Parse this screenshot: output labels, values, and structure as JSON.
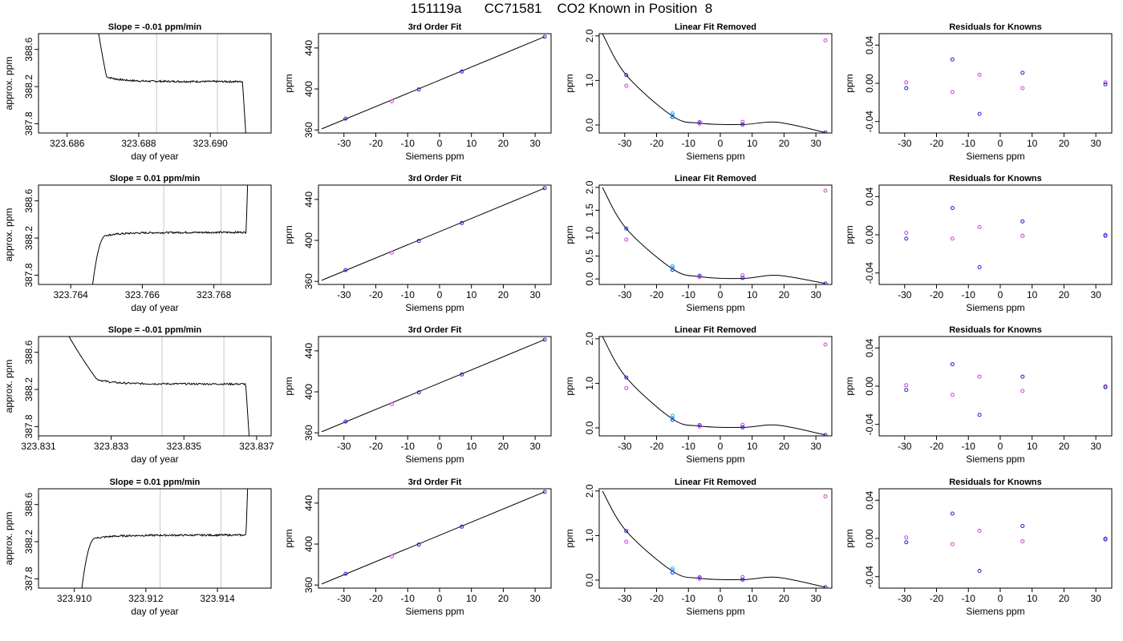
{
  "page": {
    "title": "151119a      CC71581    CO2 Known in Position  8"
  },
  "colors": {
    "axis": "#000000",
    "trace": "#000000",
    "vline": "#c8c8c8",
    "blue": "#1f1fd6",
    "magenta": "#d13fd1",
    "cyan": "#30b0e0"
  },
  "chart_data": [
    {
      "type": "line",
      "title": "Slope =  -0.01  ppm/min",
      "xlabel": "day of year",
      "ylabel": "approx. ppm",
      "xlim": [
        323.6852,
        323.6917
      ],
      "ylim": [
        387.7,
        388.77
      ],
      "xticks": [
        323.686,
        323.688,
        323.69
      ],
      "xtick_labels": [
        "323.686",
        "323.688",
        "323.690"
      ],
      "yticks": [
        387.8,
        388.2,
        388.6
      ],
      "ytick_labels": [
        "387.8",
        "388.2",
        "388.6"
      ],
      "vlines": [
        323.6885,
        323.6902
      ],
      "trace": {
        "shape": "decay",
        "x_start": 323.6867,
        "x_end": 323.6911,
        "t1": 323.6871,
        "x_drop": 323.6909,
        "level": 388.255,
        "noise": 0.012,
        "slope": -0.003
      }
    },
    {
      "type": "line",
      "title": "Slope =  0.01  ppm/min",
      "xlabel": "day of year",
      "ylabel": "approx. ppm",
      "xlim": [
        323.7631,
        323.7696
      ],
      "ylim": [
        387.7,
        388.77
      ],
      "xticks": [
        323.764,
        323.766,
        323.768
      ],
      "xtick_labels": [
        "323.764",
        "323.766",
        "323.768"
      ],
      "yticks": [
        387.8,
        388.2,
        388.6
      ],
      "ytick_labels": [
        "387.8",
        "388.2",
        "388.6"
      ],
      "vlines": [
        323.7666,
        323.7682
      ],
      "trace": {
        "shape": "rise",
        "x_start": 323.7645,
        "x_end": 323.769,
        "t1": 323.765,
        "x_drop": 323.7689,
        "level": 388.26,
        "noise": 0.012,
        "slope": 0.003
      }
    },
    {
      "type": "line",
      "title": "Slope =  -0.01  ppm/min",
      "xlabel": "day of year",
      "ylabel": "approx. ppm",
      "xlim": [
        323.831,
        323.8374
      ],
      "ylim": [
        387.7,
        388.77
      ],
      "xticks": [
        323.831,
        323.833,
        323.835,
        323.837
      ],
      "xtick_labels": [
        "323.831",
        "323.833",
        "323.835",
        "323.837"
      ],
      "yticks": [
        387.8,
        388.2,
        388.6
      ],
      "ytick_labels": [
        "387.8",
        "388.2",
        "388.6"
      ],
      "vlines": [
        323.8344,
        323.8361
      ],
      "trace": {
        "shape": "decay",
        "x_start": 323.8312,
        "x_end": 323.8369,
        "t1": 323.8326,
        "x_drop": 323.8367,
        "level": 388.26,
        "noise": 0.012,
        "slope": -0.003
      }
    },
    {
      "type": "line",
      "title": "Slope =  0.01  ppm/min",
      "xlabel": "day of year",
      "ylabel": "approx. ppm",
      "xlim": [
        323.909,
        323.9155
      ],
      "ylim": [
        387.7,
        388.77
      ],
      "xticks": [
        323.91,
        323.912,
        323.914
      ],
      "xtick_labels": [
        "323.910",
        "323.912",
        "323.914"
      ],
      "yticks": [
        387.8,
        388.2,
        388.6
      ],
      "ytick_labels": [
        "387.8",
        "388.2",
        "388.6"
      ],
      "vlines": [
        323.9124,
        323.9141
      ],
      "trace": {
        "shape": "rise",
        "x_start": 323.9101,
        "x_end": 323.9149,
        "t1": 323.9106,
        "x_drop": 323.9148,
        "level": 388.27,
        "noise": 0.012,
        "slope": 0.003
      }
    },
    {
      "type": "scatter",
      "title": "3rd Order Fit",
      "xlabel": "Siemens ppm",
      "ylabel": "ppm",
      "xlim": [
        -38,
        35
      ],
      "ylim": [
        357,
        454
      ],
      "xticks": [
        -30,
        -20,
        -10,
        0,
        10,
        20,
        30
      ],
      "xtick_labels": [
        "-30",
        "-20",
        "-10",
        "0",
        "10",
        "20",
        "30"
      ],
      "yticks": [
        360,
        400,
        440
      ],
      "ytick_labels": [
        "360",
        "400",
        "440"
      ],
      "fit_line": {
        "x": [
          -37,
          33
        ],
        "y": [
          361,
          451
        ]
      },
      "points": {
        "x": [
          -29.5,
          -15,
          -6.5,
          7,
          33
        ],
        "y": [
          371,
          388,
          399.5,
          417,
          451
        ],
        "colors": [
          "blue",
          "magenta",
          "blue",
          "blue",
          "blue"
        ]
      }
    },
    {
      "type": "scatter",
      "title": "3rd Order Fit",
      "xlabel": "Siemens ppm",
      "ylabel": "ppm",
      "xlim": [
        -38,
        35
      ],
      "ylim": [
        357,
        454
      ],
      "xticks": [
        -30,
        -20,
        -10,
        0,
        10,
        20,
        30
      ],
      "xtick_labels": [
        "-30",
        "-20",
        "-10",
        "0",
        "10",
        "20",
        "30"
      ],
      "yticks": [
        360,
        400,
        440
      ],
      "ytick_labels": [
        "360",
        "400",
        "440"
      ],
      "fit_line": {
        "x": [
          -37,
          33
        ],
        "y": [
          361,
          451
        ]
      },
      "points": {
        "x": [
          -29.5,
          -15,
          -6.5,
          7,
          33
        ],
        "y": [
          371,
          388,
          399.5,
          417,
          451
        ],
        "colors": [
          "blue",
          "magenta",
          "blue",
          "blue",
          "blue"
        ]
      }
    },
    {
      "type": "scatter",
      "title": "3rd Order Fit",
      "xlabel": "Siemens ppm",
      "ylabel": "ppm",
      "xlim": [
        -38,
        35
      ],
      "ylim": [
        357,
        454
      ],
      "xticks": [
        -30,
        -20,
        -10,
        0,
        10,
        20,
        30
      ],
      "xtick_labels": [
        "-30",
        "-20",
        "-10",
        "0",
        "10",
        "20",
        "30"
      ],
      "yticks": [
        360,
        400,
        440
      ],
      "ytick_labels": [
        "360",
        "400",
        "440"
      ],
      "fit_line": {
        "x": [
          -37,
          33
        ],
        "y": [
          361,
          451
        ]
      },
      "points": {
        "x": [
          -29.5,
          -15,
          -6.5,
          7,
          33
        ],
        "y": [
          371,
          388,
          399.5,
          417,
          451
        ],
        "colors": [
          "blue",
          "magenta",
          "blue",
          "blue",
          "blue"
        ]
      }
    },
    {
      "type": "scatter",
      "title": "3rd Order Fit",
      "xlabel": "Siemens ppm",
      "ylabel": "ppm",
      "xlim": [
        -38,
        35
      ],
      "ylim": [
        357,
        454
      ],
      "xticks": [
        -30,
        -20,
        -10,
        0,
        10,
        20,
        30
      ],
      "xtick_labels": [
        "-30",
        "-20",
        "-10",
        "0",
        "10",
        "20",
        "30"
      ],
      "yticks": [
        360,
        400,
        440
      ],
      "ytick_labels": [
        "360",
        "400",
        "440"
      ],
      "fit_line": {
        "x": [
          -37,
          33
        ],
        "y": [
          361,
          451
        ]
      },
      "points": {
        "x": [
          -29.5,
          -15,
          -6.5,
          7,
          33
        ],
        "y": [
          371,
          388,
          399.5,
          417,
          451
        ],
        "colors": [
          "blue",
          "magenta",
          "blue",
          "blue",
          "blue"
        ]
      }
    },
    {
      "type": "scatter",
      "title": "Linear Fit Removed",
      "xlabel": "Siemens ppm",
      "ylabel": "ppm",
      "xlim": [
        -38,
        35
      ],
      "ylim": [
        -0.18,
        2.05
      ],
      "xticks": [
        -30,
        -20,
        -10,
        0,
        10,
        20,
        30
      ],
      "xtick_labels": [
        "-30",
        "-20",
        "-10",
        "0",
        "10",
        "20",
        "30"
      ],
      "yticks": [
        0.0,
        1.0,
        2.0
      ],
      "ytick_labels": [
        "0.0",
        "1.0",
        "2.0"
      ],
      "curve": {
        "x": [
          -37,
          -29.5,
          -15,
          -6.5,
          7,
          18,
          33
        ],
        "y": [
          2.05,
          1.12,
          0.2,
          0.04,
          0.01,
          0.06,
          -0.17
        ]
      },
      "points": {
        "x": [
          -29.5,
          -29.5,
          -15,
          -15,
          -15,
          -6.5,
          -6.5,
          7,
          7,
          33,
          33
        ],
        "y": [
          1.12,
          0.88,
          0.26,
          0.18,
          0.22,
          0.06,
          0.03,
          0.07,
          0.01,
          1.9,
          -0.17
        ],
        "colors": [
          "blue",
          "magenta",
          "cyan",
          "blue",
          "cyan",
          "blue",
          "magenta",
          "magenta",
          "blue",
          "magenta",
          "blue"
        ]
      }
    },
    {
      "type": "scatter",
      "title": "Linear Fit Removed",
      "xlabel": "Siemens ppm",
      "ylabel": "ppm",
      "xlim": [
        -38,
        35
      ],
      "ylim": [
        -0.12,
        2.05
      ],
      "xticks": [
        -30,
        -20,
        -10,
        0,
        10,
        20,
        30
      ],
      "xtick_labels": [
        "-30",
        "-20",
        "-10",
        "0",
        "10",
        "20",
        "30"
      ],
      "yticks": [
        0.0,
        0.5,
        1.0,
        1.5,
        2.0
      ],
      "ytick_labels": [
        "0.0",
        "0.5",
        "1.0",
        "1.5",
        "2.0"
      ],
      "curve": {
        "x": [
          -37,
          -29.5,
          -15,
          -6.5,
          7,
          18,
          33
        ],
        "y": [
          2.0,
          1.1,
          0.22,
          0.05,
          0.01,
          0.08,
          -0.1
        ]
      },
      "points": {
        "x": [
          -29.5,
          -29.5,
          -15,
          -15,
          -15,
          -6.5,
          -6.5,
          7,
          7,
          33,
          33
        ],
        "y": [
          1.1,
          0.86,
          0.28,
          0.2,
          0.24,
          0.07,
          0.04,
          0.08,
          0.02,
          1.93,
          -0.1
        ],
        "colors": [
          "blue",
          "magenta",
          "cyan",
          "blue",
          "cyan",
          "blue",
          "magenta",
          "magenta",
          "blue",
          "magenta",
          "blue"
        ]
      }
    },
    {
      "type": "scatter",
      "title": "Linear Fit Removed",
      "xlabel": "Siemens ppm",
      "ylabel": "ppm",
      "xlim": [
        -38,
        35
      ],
      "ylim": [
        -0.18,
        2.05
      ],
      "xticks": [
        -30,
        -20,
        -10,
        0,
        10,
        20,
        30
      ],
      "xtick_labels": [
        "-30",
        "-20",
        "-10",
        "0",
        "10",
        "20",
        "30"
      ],
      "yticks": [
        0.0,
        1.0,
        2.0
      ],
      "ytick_labels": [
        "0.0",
        "1.0",
        "2.0"
      ],
      "curve": {
        "x": [
          -37,
          -29.5,
          -15,
          -6.5,
          7,
          18,
          33
        ],
        "y": [
          2.05,
          1.13,
          0.2,
          0.04,
          0.01,
          0.06,
          -0.16
        ]
      },
      "points": {
        "x": [
          -29.5,
          -29.5,
          -15,
          -15,
          -15,
          -6.5,
          -6.5,
          7,
          7,
          33,
          33
        ],
        "y": [
          1.13,
          0.89,
          0.27,
          0.18,
          0.22,
          0.06,
          0.03,
          0.07,
          0.01,
          1.87,
          -0.16
        ],
        "colors": [
          "blue",
          "magenta",
          "cyan",
          "blue",
          "cyan",
          "blue",
          "magenta",
          "magenta",
          "blue",
          "magenta",
          "blue"
        ]
      }
    },
    {
      "type": "scatter",
      "title": "Linear Fit Removed",
      "xlabel": "Siemens ppm",
      "ylabel": "ppm",
      "xlim": [
        -38,
        35
      ],
      "ylim": [
        -0.18,
        2.05
      ],
      "xticks": [
        -30,
        -20,
        -10,
        0,
        10,
        20,
        30
      ],
      "xtick_labels": [
        "-30",
        "-20",
        "-10",
        "0",
        "10",
        "20",
        "30"
      ],
      "yticks": [
        0.0,
        1.0,
        2.0
      ],
      "ytick_labels": [
        "0.0",
        "1.0",
        "2.0"
      ],
      "curve": {
        "x": [
          -37,
          -29.5,
          -15,
          -6.5,
          7,
          18,
          33
        ],
        "y": [
          2.0,
          1.1,
          0.2,
          0.04,
          0.01,
          0.06,
          -0.16
        ]
      },
      "points": {
        "x": [
          -29.5,
          -29.5,
          -15,
          -15,
          -15,
          -6.5,
          -6.5,
          7,
          7,
          33,
          33
        ],
        "y": [
          1.1,
          0.86,
          0.26,
          0.17,
          0.22,
          0.06,
          0.03,
          0.07,
          0.01,
          1.88,
          -0.16
        ],
        "colors": [
          "blue",
          "magenta",
          "cyan",
          "blue",
          "cyan",
          "blue",
          "magenta",
          "magenta",
          "blue",
          "magenta",
          "blue"
        ]
      }
    },
    {
      "type": "scatter",
      "title": "Residuals for Knowns",
      "xlabel": "Siemens ppm",
      "ylabel": "ppm",
      "xlim": [
        -38,
        35
      ],
      "ylim": [
        -0.052,
        0.052
      ],
      "xticks": [
        -30,
        -20,
        -10,
        0,
        10,
        20,
        30
      ],
      "xtick_labels": [
        "-30",
        "-20",
        "-10",
        "0",
        "10",
        "20",
        "30"
      ],
      "yticks": [
        -0.04,
        0.0,
        0.04
      ],
      "ytick_labels": [
        "-0.04",
        "0.00",
        "0.04"
      ],
      "points": {
        "x": [
          -29.5,
          -29.5,
          -15,
          -15,
          -6.5,
          -6.5,
          7,
          7,
          33,
          33
        ],
        "y": [
          -0.005,
          0.001,
          0.025,
          -0.009,
          -0.032,
          0.009,
          0.011,
          -0.005,
          0.001,
          -0.001
        ],
        "colors": [
          "blue",
          "magenta",
          "blue",
          "magenta",
          "blue",
          "magenta",
          "blue",
          "magenta",
          "magenta",
          "blue"
        ]
      }
    },
    {
      "type": "scatter",
      "title": "Residuals for Knowns",
      "xlabel": "Siemens ppm",
      "ylabel": "ppm",
      "xlim": [
        -38,
        35
      ],
      "ylim": [
        -0.052,
        0.052
      ],
      "xticks": [
        -30,
        -20,
        -10,
        0,
        10,
        20,
        30
      ],
      "xtick_labels": [
        "-30",
        "-20",
        "-10",
        "0",
        "10",
        "20",
        "30"
      ],
      "yticks": [
        -0.04,
        0.0,
        0.04
      ],
      "ytick_labels": [
        "-0.04",
        "0.00",
        "0.04"
      ],
      "points": {
        "x": [
          -29.5,
          -29.5,
          -15,
          -15,
          -6.5,
          -6.5,
          7,
          7,
          33,
          33
        ],
        "y": [
          -0.004,
          0.002,
          0.028,
          -0.004,
          -0.034,
          0.008,
          0.014,
          -0.001,
          0.0,
          -0.001
        ],
        "colors": [
          "blue",
          "magenta",
          "blue",
          "magenta",
          "blue",
          "magenta",
          "blue",
          "magenta",
          "magenta",
          "blue"
        ]
      }
    },
    {
      "type": "scatter",
      "title": "Residuals for Knowns",
      "xlabel": "Siemens ppm",
      "ylabel": "ppm",
      "xlim": [
        -38,
        35
      ],
      "ylim": [
        -0.052,
        0.052
      ],
      "xticks": [
        -30,
        -20,
        -10,
        0,
        10,
        20,
        30
      ],
      "xtick_labels": [
        "-30",
        "-20",
        "-10",
        "0",
        "10",
        "20",
        "30"
      ],
      "yticks": [
        -0.04,
        0.0,
        0.04
      ],
      "ytick_labels": [
        "-0.04",
        "0.00",
        "0.04"
      ],
      "points": {
        "x": [
          -29.5,
          -29.5,
          -15,
          -15,
          -6.5,
          -6.5,
          7,
          7,
          33,
          33
        ],
        "y": [
          -0.004,
          0.001,
          0.023,
          -0.009,
          -0.03,
          0.01,
          0.01,
          -0.005,
          0.0,
          -0.001
        ],
        "colors": [
          "blue",
          "magenta",
          "blue",
          "magenta",
          "blue",
          "magenta",
          "blue",
          "magenta",
          "magenta",
          "blue"
        ]
      }
    },
    {
      "type": "scatter",
      "title": "Residuals for Knowns",
      "xlabel": "Siemens ppm",
      "ylabel": "ppm",
      "xlim": [
        -38,
        35
      ],
      "ylim": [
        -0.052,
        0.052
      ],
      "xticks": [
        -30,
        -20,
        -10,
        0,
        10,
        20,
        30
      ],
      "xtick_labels": [
        "-30",
        "-20",
        "-10",
        "0",
        "10",
        "20",
        "30"
      ],
      "yticks": [
        -0.04,
        0.0,
        0.04
      ],
      "ytick_labels": [
        "-0.04",
        "0.00",
        "0.04"
      ],
      "points": {
        "x": [
          -29.5,
          -29.5,
          -15,
          -15,
          -6.5,
          -6.5,
          7,
          7,
          33,
          33
        ],
        "y": [
          -0.004,
          0.001,
          0.026,
          -0.006,
          -0.034,
          0.008,
          0.013,
          -0.003,
          0.0,
          -0.001
        ],
        "colors": [
          "blue",
          "magenta",
          "blue",
          "magenta",
          "blue",
          "magenta",
          "blue",
          "magenta",
          "magenta",
          "blue"
        ]
      }
    }
  ]
}
